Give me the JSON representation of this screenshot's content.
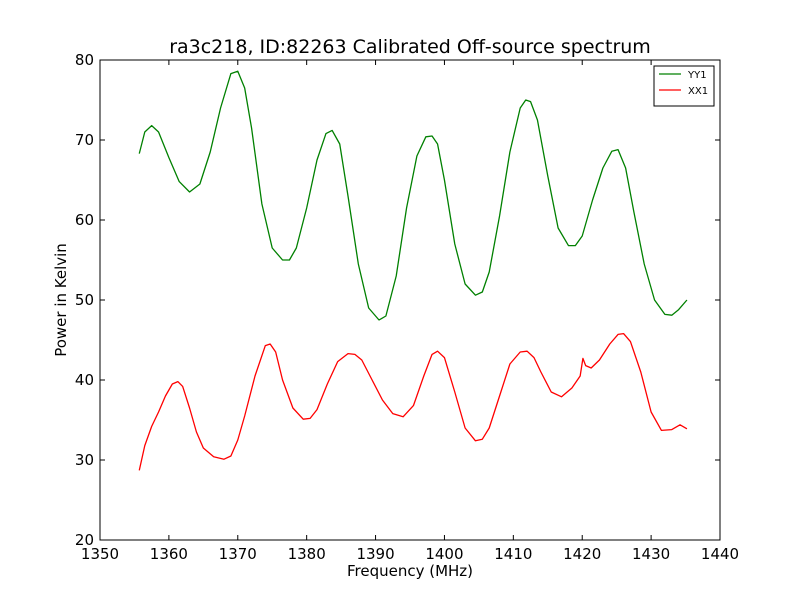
{
  "chart_data": {
    "type": "line",
    "title": "ra3c218, ID:82263 Calibrated Off-source spectrum",
    "xlabel": "Frequency (MHz)",
    "ylabel": "Power in Kelvin",
    "xlim": [
      1350,
      1440
    ],
    "ylim": [
      20,
      80
    ],
    "xticks": [
      1350,
      1360,
      1370,
      1380,
      1390,
      1400,
      1410,
      1420,
      1430,
      1440
    ],
    "yticks": [
      20,
      30,
      40,
      50,
      60,
      70,
      80
    ],
    "grid": false,
    "legend_position": "top-right",
    "series": [
      {
        "name": "YY1",
        "color": "#008000",
        "x": [
          1355.7,
          1356.5,
          1357.5,
          1358.5,
          1360,
          1361.5,
          1363,
          1364.5,
          1366,
          1367.5,
          1369,
          1370,
          1371,
          1372,
          1373.5,
          1375,
          1376.5,
          1377.5,
          1378.5,
          1380,
          1381.5,
          1382.8,
          1383.7,
          1384.8,
          1386,
          1387.5,
          1389,
          1390.5,
          1391.5,
          1393,
          1394.5,
          1396,
          1397.3,
          1398.2,
          1399,
          1400,
          1401.5,
          1403,
          1404.5,
          1405.5,
          1406.5,
          1408,
          1409.5,
          1411,
          1411.8,
          1412.5,
          1413.5,
          1415,
          1416.5,
          1418,
          1419,
          1420,
          1421.5,
          1423,
          1424.3,
          1425.2,
          1426.3,
          1427.5,
          1429,
          1430.5,
          1432,
          1433,
          1434,
          1435.2
        ],
        "y": [
          68.3,
          71.0,
          71.8,
          71.0,
          67.8,
          64.8,
          63.5,
          64.5,
          68.5,
          74.0,
          78.3,
          78.6,
          76.5,
          71.5,
          62.0,
          56.5,
          55.0,
          55.0,
          56.5,
          61.5,
          67.5,
          70.8,
          71.2,
          69.5,
          63.0,
          54.5,
          49.0,
          47.5,
          48.0,
          53.0,
          61.5,
          68.0,
          70.4,
          70.5,
          69.5,
          65.0,
          57.0,
          52.0,
          50.6,
          51.0,
          53.5,
          60.5,
          68.5,
          74.0,
          75.0,
          74.8,
          72.5,
          65.5,
          59.0,
          56.8,
          56.8,
          58.0,
          62.5,
          66.5,
          68.6,
          68.8,
          66.5,
          61.0,
          54.5,
          50.0,
          48.2,
          48.1,
          48.8,
          50.0
        ]
      },
      {
        "name": "XX1",
        "color": "#ff0000",
        "x": [
          1355.7,
          1356.5,
          1357.5,
          1358.5,
          1359.5,
          1360.5,
          1361.3,
          1362,
          1363,
          1364,
          1365,
          1366.5,
          1368,
          1369,
          1370,
          1371,
          1372.5,
          1374,
          1374.7,
          1375.5,
          1376.5,
          1378,
          1379.5,
          1380.5,
          1381.5,
          1383,
          1384.5,
          1386,
          1387,
          1388,
          1389.5,
          1391,
          1392.5,
          1394,
          1395.5,
          1397,
          1398.2,
          1399,
          1400,
          1401.5,
          1403,
          1404.5,
          1405.5,
          1406.5,
          1408,
          1409.5,
          1411,
          1412,
          1413,
          1414,
          1415.5,
          1417,
          1418.5,
          1419.7,
          1420.1,
          1420.5,
          1421.3,
          1422.5,
          1424,
          1425.2,
          1426,
          1427,
          1428.5,
          1430,
          1431.5,
          1433,
          1434.2,
          1435.2
        ],
        "y": [
          28.7,
          31.8,
          34.2,
          36.0,
          38.0,
          39.5,
          39.8,
          39.2,
          36.5,
          33.5,
          31.5,
          30.4,
          30.1,
          30.5,
          32.5,
          35.5,
          40.5,
          44.3,
          44.5,
          43.5,
          40.0,
          36.5,
          35.1,
          35.2,
          36.3,
          39.5,
          42.3,
          43.3,
          43.2,
          42.5,
          40.0,
          37.5,
          35.8,
          35.4,
          36.8,
          40.5,
          43.2,
          43.6,
          42.8,
          38.5,
          34.0,
          32.4,
          32.6,
          34.0,
          38.0,
          42.0,
          43.5,
          43.6,
          42.8,
          41.0,
          38.5,
          37.9,
          39.0,
          40.5,
          42.7,
          41.8,
          41.5,
          42.5,
          44.5,
          45.7,
          45.8,
          44.8,
          41.0,
          36.0,
          33.7,
          33.8,
          34.4,
          33.9
        ]
      }
    ]
  }
}
